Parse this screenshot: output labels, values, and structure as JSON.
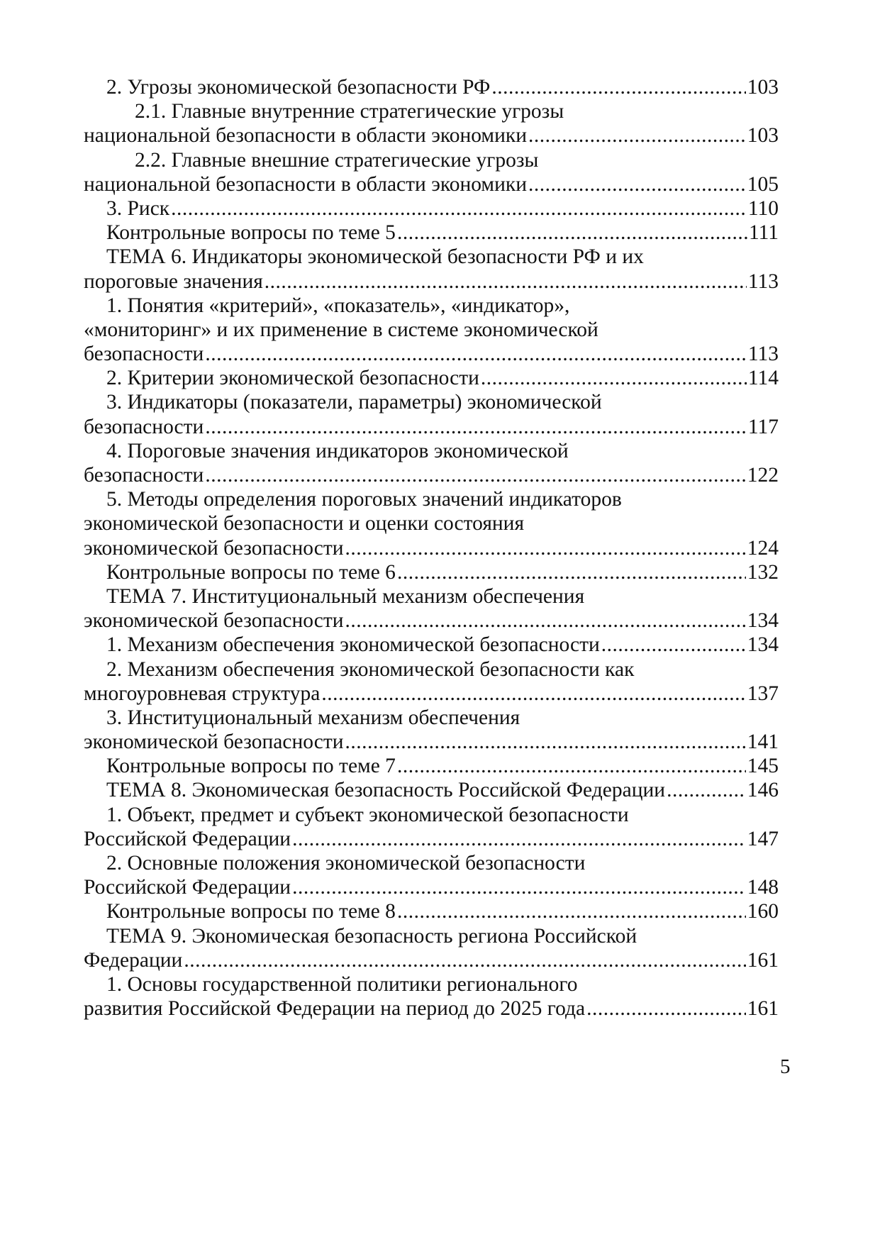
{
  "toc": [
    {
      "level": 1,
      "lines": [],
      "last": "2. Угрозы экономической безопасности РФ",
      "page": "103"
    },
    {
      "level": 2,
      "lines": [
        "2.1. Главные внутренние стратегические угрозы"
      ],
      "last": "национальной безопасности в области экономики",
      "page": "103"
    },
    {
      "level": 2,
      "lines": [
        "2.2. Главные внешние стратегические угрозы"
      ],
      "last": "национальной безопасности в области экономики",
      "page": "105"
    },
    {
      "level": 1,
      "lines": [],
      "last": "3. Риск",
      "page": "110"
    },
    {
      "level": 1,
      "lines": [],
      "last": "Контрольные вопросы по теме 5",
      "page": "111"
    },
    {
      "level": 1,
      "lines": [
        "ТЕМА 6. Индикаторы экономической безопасности РФ и их"
      ],
      "last": "пороговые значения",
      "page": "113"
    },
    {
      "level": 1,
      "lines": [
        "1. Понятия «критерий», «показатель», «индикатор»,",
        "«мониторинг» и их применение в системе экономической"
      ],
      "last": "безопасности",
      "page": "113"
    },
    {
      "level": 1,
      "lines": [],
      "last": "2. Критерии экономической безопасности",
      "page": "114"
    },
    {
      "level": 1,
      "lines": [
        "3. Индикаторы (показатели, параметры) экономической"
      ],
      "last": "безопасности",
      "page": "117"
    },
    {
      "level": 1,
      "lines": [
        "4. Пороговые значения индикаторов экономической"
      ],
      "last": "безопасности",
      "page": "122"
    },
    {
      "level": 1,
      "lines": [
        "5. Методы определения пороговых значений индикаторов",
        "экономической безопасности и оценки состояния"
      ],
      "last": "экономической безопасности",
      "page": "124"
    },
    {
      "level": 1,
      "lines": [],
      "last": "Контрольные вопросы по теме 6",
      "page": "132"
    },
    {
      "level": 1,
      "lines": [
        "ТЕМА 7. Институциональный механизм обеспечения"
      ],
      "last": "экономической безопасности",
      "page": "134"
    },
    {
      "level": 1,
      "lines": [],
      "last": "1. Механизм обеспечения экономической безопасности",
      "page": "134"
    },
    {
      "level": 1,
      "lines": [
        "2. Механизм обеспечения экономической безопасности как"
      ],
      "last": "многоуровневая структура",
      "page": "137"
    },
    {
      "level": 1,
      "lines": [
        "3. Институциональный механизм обеспечения"
      ],
      "last": "экономической безопасности",
      "page": "141"
    },
    {
      "level": 1,
      "lines": [],
      "last": "Контрольные вопросы по теме 7",
      "page": "145"
    },
    {
      "level": 1,
      "lines": [],
      "last": "ТЕМА 8. Экономическая безопасность Российской Федерации",
      "page": "146"
    },
    {
      "level": 1,
      "lines": [
        "1. Объект, предмет и субъект экономической безопасности"
      ],
      "last": "Российской Федерации",
      "page": "147"
    },
    {
      "level": 1,
      "lines": [
        "2. Основные положения экономической безопасности"
      ],
      "last": "Российской Федерации",
      "page": "148"
    },
    {
      "level": 1,
      "lines": [],
      "last": "Контрольные вопросы по теме 8",
      "page": "160"
    },
    {
      "level": 1,
      "lines": [
        "ТЕМА 9. Экономическая безопасность региона Российской"
      ],
      "last": "Федерации",
      "page": "161"
    },
    {
      "level": 1,
      "lines": [
        "1. Основы государственной политики регионального"
      ],
      "last": "развития Российской Федерации на период до 2025 года",
      "page": "161"
    }
  ],
  "page_number": "5"
}
